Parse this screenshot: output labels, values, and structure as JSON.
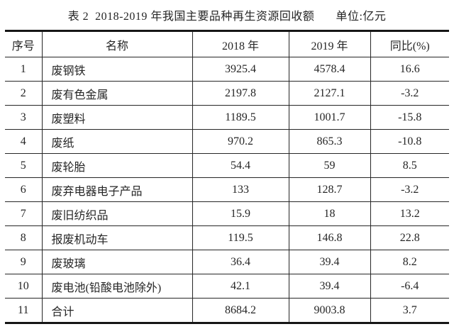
{
  "caption": {
    "title": "表 2  2018-2019 年我国主要品种再生资源回收额",
    "unit": "单位:亿元"
  },
  "table": {
    "columns": [
      "序号",
      "名称",
      "2018 年",
      "2019 年",
      "同比(%)"
    ],
    "rows": [
      [
        "1",
        "废钢铁",
        "3925.4",
        "4578.4",
        "16.6"
      ],
      [
        "2",
        "废有色金属",
        "2197.8",
        "2127.1",
        "-3.2"
      ],
      [
        "3",
        "废塑料",
        "1189.5",
        "1001.7",
        "-15.8"
      ],
      [
        "4",
        "废纸",
        "970.2",
        "865.3",
        "-10.8"
      ],
      [
        "5",
        "废轮胎",
        "54.4",
        "59",
        "8.5"
      ],
      [
        "6",
        "废弃电器电子产品",
        "133",
        "128.7",
        "-3.2"
      ],
      [
        "7",
        "废旧纺织品",
        "15.9",
        "18",
        "13.2"
      ],
      [
        "8",
        "报废机动车",
        "119.5",
        "146.8",
        "22.8"
      ],
      [
        "9",
        "废玻璃",
        "36.4",
        "39.4",
        "8.2"
      ],
      [
        "10",
        "废电池(铅酸电池除外)",
        "42.1",
        "39.4",
        "-6.4"
      ],
      [
        "11",
        "合计",
        "8684.2",
        "9003.8",
        "3.7"
      ]
    ]
  },
  "colors": {
    "text": "#262626",
    "border": "#262626",
    "thick_rule": "#161616",
    "background": "#ffffff"
  }
}
